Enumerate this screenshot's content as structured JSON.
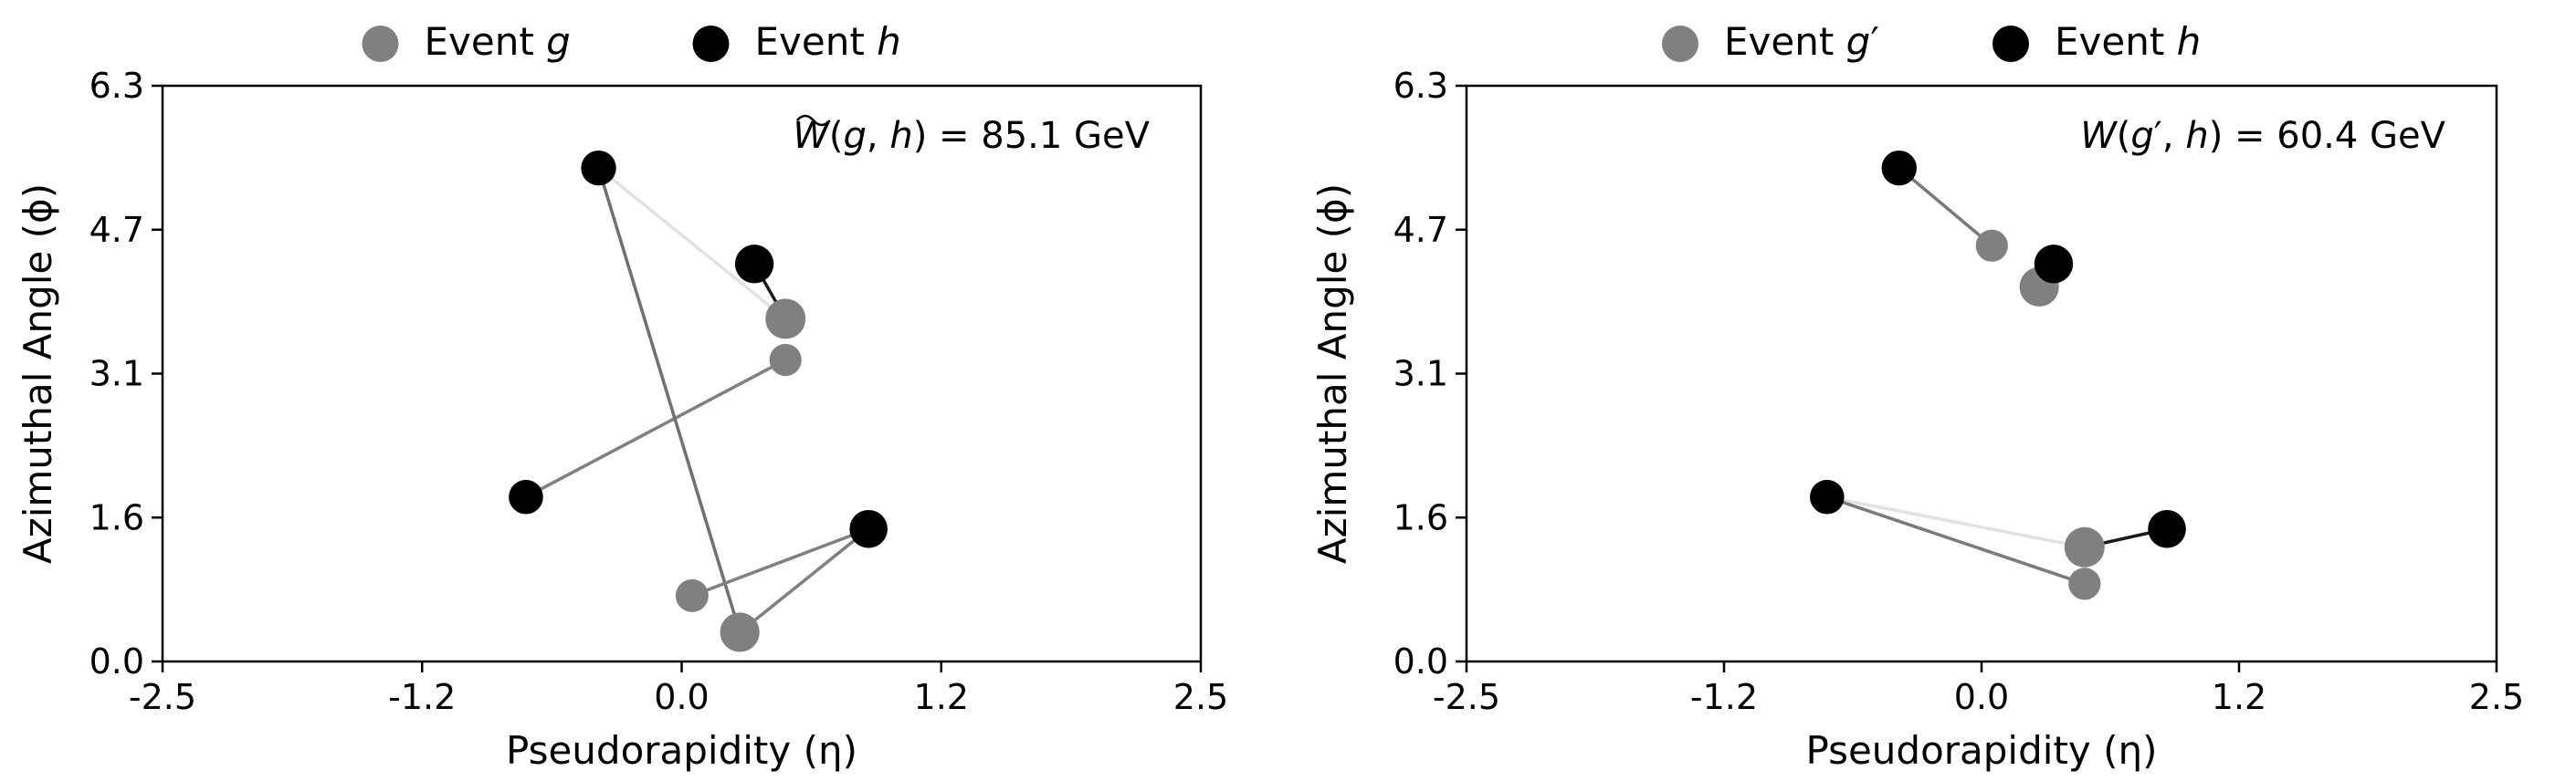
{
  "chart_data": [
    {
      "type": "scatter",
      "xlabel": "Pseudorapidity (η)",
      "ylabel": "Azimuthal Angle (ϕ)",
      "xlim": [
        -2.5,
        2.5
      ],
      "ylim": [
        0.0,
        6.3
      ],
      "xticks": [
        "-2.5",
        "-1.2",
        "0.0",
        "1.2",
        "2.5"
      ],
      "yticks": [
        "0.0",
        "1.6",
        "3.1",
        "4.7",
        "6.3"
      ],
      "legend": {
        "placement": "top-center",
        "entries": [
          {
            "base": "Event ",
            "var": "g",
            "prime": "",
            "color": "#808080"
          },
          {
            "base": "Event ",
            "var": "h",
            "prime": "",
            "color": "#000000"
          }
        ]
      },
      "annotation": {
        "tilde": true,
        "W": "W",
        "a": "g",
        "prime": "",
        "b": "h",
        "eq": " = ",
        "value": "85.1 GeV"
      },
      "series": [
        {
          "name": "Event g",
          "color": "#808080",
          "points": [
            {
              "x": 0.5,
              "y": 3.75,
              "w": 1.0
            },
            {
              "x": 0.5,
              "y": 3.3,
              "w": 0.45
            },
            {
              "x": 0.05,
              "y": 0.72,
              "w": 0.5
            },
            {
              "x": 0.28,
              "y": 0.32,
              "w": 0.95
            }
          ]
        },
        {
          "name": "Event h",
          "color": "#000000",
          "points": [
            {
              "x": -0.4,
              "y": 5.4,
              "w": 0.65
            },
            {
              "x": 0.35,
              "y": 4.35,
              "w": 0.9
            },
            {
              "x": -0.75,
              "y": 1.8,
              "w": 0.6
            },
            {
              "x": 0.9,
              "y": 1.45,
              "w": 0.85
            }
          ]
        }
      ],
      "transport": [
        {
          "g": 0,
          "h": 0,
          "shade": "#e2e2e2"
        },
        {
          "g": 0,
          "h": 1,
          "shade": "#1a1a1a"
        },
        {
          "g": 1,
          "h": 2,
          "shade": "#808080"
        },
        {
          "g": 3,
          "h": 0,
          "shade": "#707070"
        },
        {
          "g": 2,
          "h": 3,
          "shade": "#808080"
        },
        {
          "g": 3,
          "h": 3,
          "shade": "#808080"
        }
      ]
    },
    {
      "type": "scatter",
      "xlabel": "Pseudorapidity (η)",
      "ylabel": "Azimuthal Angle (ϕ)",
      "xlim": [
        -2.5,
        2.5
      ],
      "ylim": [
        0.0,
        6.3
      ],
      "xticks": [
        "-2.5",
        "-1.2",
        "0.0",
        "1.2",
        "2.5"
      ],
      "yticks": [
        "0.0",
        "1.6",
        "3.1",
        "4.7",
        "6.3"
      ],
      "legend": {
        "placement": "top-center",
        "entries": [
          {
            "base": "Event ",
            "var": "g",
            "prime": "′",
            "color": "#808080"
          },
          {
            "base": "Event ",
            "var": "h",
            "prime": "",
            "color": "#000000"
          }
        ]
      },
      "annotation": {
        "tilde": false,
        "W": "W",
        "a": "g",
        "prime": "′",
        "b": "h",
        "eq": " = ",
        "value": "60.4 GeV"
      },
      "series": [
        {
          "name": "Event g′",
          "color": "#808080",
          "points": [
            {
              "x": 0.05,
              "y": 4.55,
              "w": 0.45
            },
            {
              "x": 0.28,
              "y": 4.1,
              "w": 0.95
            },
            {
              "x": 0.5,
              "y": 1.25,
              "w": 1.0
            },
            {
              "x": 0.5,
              "y": 0.85,
              "w": 0.45
            }
          ]
        },
        {
          "name": "Event h",
          "color": "#000000",
          "points": [
            {
              "x": -0.4,
              "y": 5.4,
              "w": 0.65
            },
            {
              "x": 0.35,
              "y": 4.35,
              "w": 0.9
            },
            {
              "x": -0.75,
              "y": 1.8,
              "w": 0.6
            },
            {
              "x": 0.9,
              "y": 1.45,
              "w": 0.85
            }
          ]
        }
      ],
      "transport": [
        {
          "g": 0,
          "h": 0,
          "shade": "#7a7a7a"
        },
        {
          "g": 1,
          "h": 1,
          "shade": "#1a1a1a"
        },
        {
          "g": 2,
          "h": 2,
          "shade": "#e2e2e2"
        },
        {
          "g": 3,
          "h": 2,
          "shade": "#7a7a7a"
        },
        {
          "g": 2,
          "h": 3,
          "shade": "#1a1a1a"
        }
      ]
    }
  ]
}
